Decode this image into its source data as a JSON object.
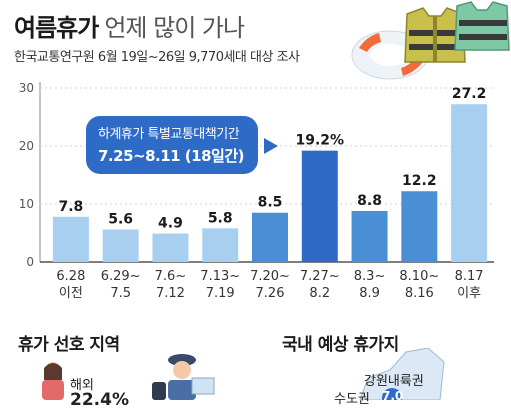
{
  "header": {
    "title_bold": "여름휴가",
    "title_rest": "언제 많이 가나",
    "subtitle": "한국교통연구원 6월 19일~26일 9,770세대 대상 조사"
  },
  "callout": {
    "line1": "하계휴가 특별교통대책기간",
    "line2": "7.25~8.11 (18일간)"
  },
  "sections": {
    "preferred_region": "휴가 선호 지역",
    "domestic_destination": "국내 예상 휴가지"
  },
  "regions": {
    "overseas_label": "해외",
    "overseas_value": "22.4%",
    "gangwon_label": "강원내륙권",
    "capital_label": "수도권",
    "gangwon_value": "7.0"
  },
  "colors": {
    "light_bar": "#a8cff0",
    "dark_bar": "#2d6bc7",
    "medium_bar": "#4a8ed6",
    "axis": "#888888",
    "grid": "#d0d0d0"
  },
  "chart_data": {
    "type": "bar",
    "categories": [
      [
        "6.28",
        "이전"
      ],
      [
        "6.29~",
        "7.5"
      ],
      [
        "7.6~",
        "7.12"
      ],
      [
        "7.13~",
        "7.19"
      ],
      [
        "7.20~",
        "7.26"
      ],
      [
        "7.27~",
        "8.2"
      ],
      [
        "8.3~",
        "8.9"
      ],
      [
        "8.10~",
        "8.16"
      ],
      [
        "8.17",
        "이후"
      ]
    ],
    "values": [
      7.8,
      5.6,
      4.9,
      5.8,
      8.5,
      19.2,
      8.8,
      12.2,
      27.2
    ],
    "value_labels": [
      "7.8",
      "5.6",
      "4.9",
      "5.8",
      "8.5",
      "19.2%",
      "8.8",
      "12.2",
      "27.2"
    ],
    "bar_styles": [
      "light",
      "light",
      "light",
      "light",
      "medium",
      "dark",
      "medium",
      "medium",
      "light"
    ],
    "yticks": [
      0,
      10,
      20,
      30
    ],
    "ylim": [
      0,
      30
    ]
  }
}
